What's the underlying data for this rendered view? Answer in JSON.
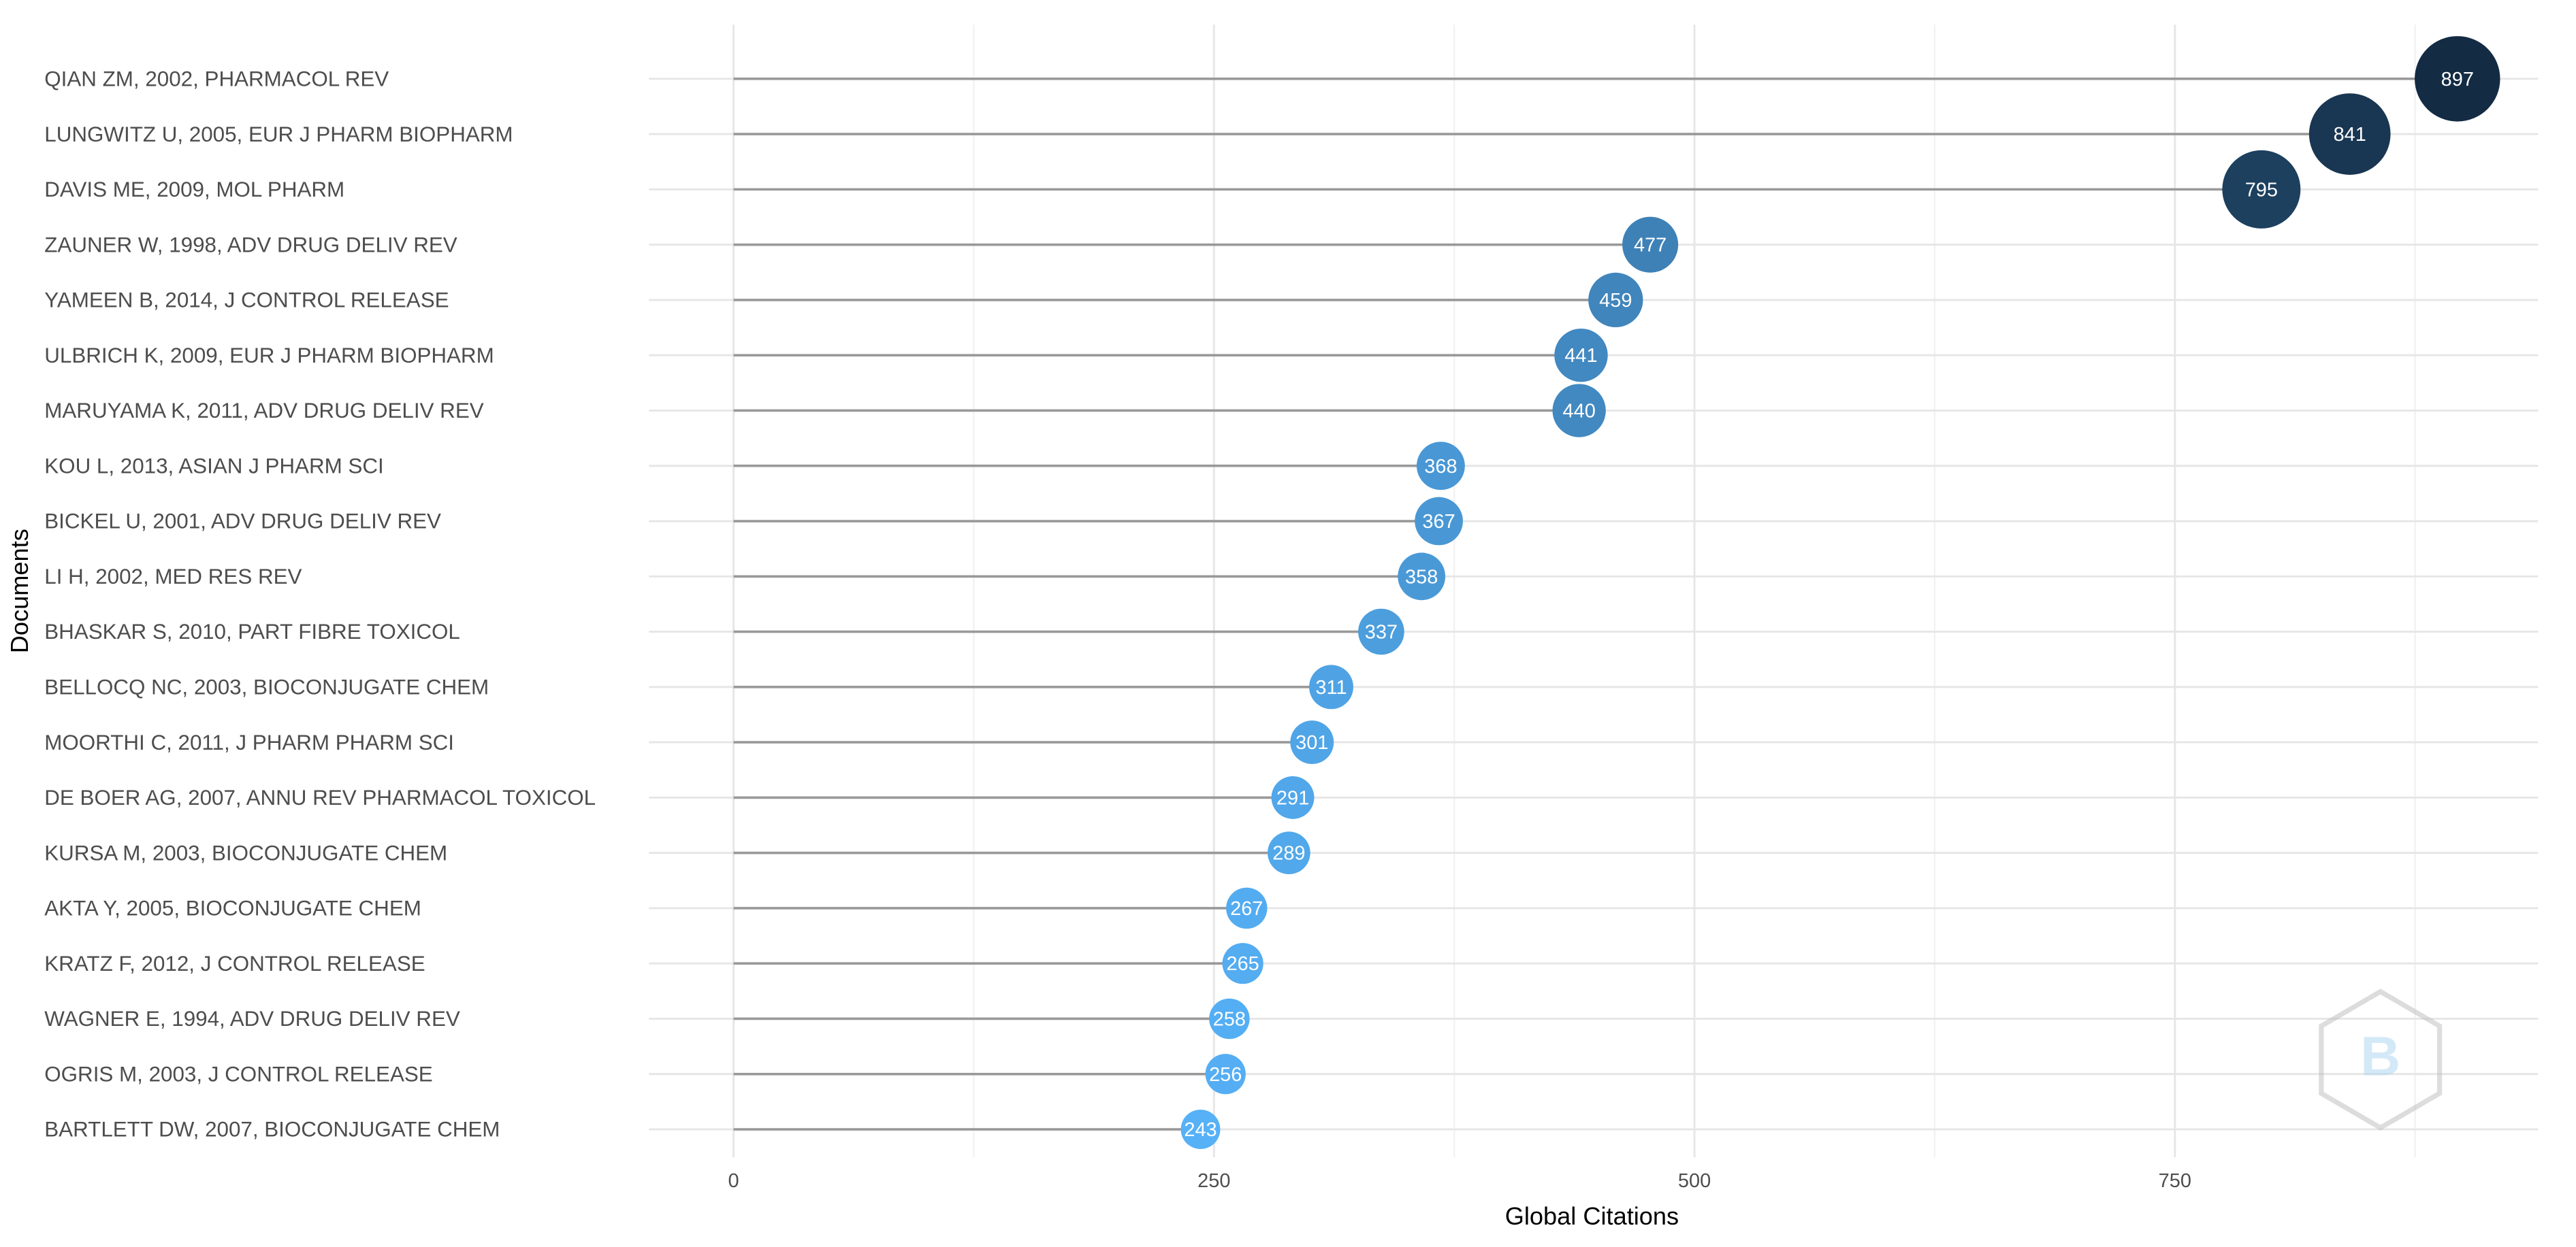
{
  "chart_data": {
    "type": "lollipop",
    "x_label": "Global Citations",
    "y_label": "Documents",
    "categories": [
      "QIAN ZM, 2002, PHARMACOL REV",
      "LUNGWITZ U, 2005, EUR J PHARM BIOPHARM",
      "DAVIS ME, 2009, MOL PHARM",
      "ZAUNER W, 1998, ADV DRUG DELIV REV",
      "YAMEEN B, 2014, J CONTROL RELEASE",
      "ULBRICH K, 2009, EUR J PHARM BIOPHARM",
      "MARUYAMA K, 2011, ADV DRUG DELIV REV",
      "KOU L, 2013, ASIAN J PHARM SCI",
      "BICKEL U, 2001, ADV DRUG DELIV REV",
      "LI H, 2002, MED RES REV",
      "BHASKAR S, 2010, PART FIBRE TOXICOL",
      "BELLOCQ NC, 2003, BIOCONJUGATE CHEM",
      "MOORTHI C, 2011, J PHARM PHARM SCI",
      "DE BOER AG, 2007, ANNU REV PHARMACOL TOXICOL",
      "KURSA M, 2003, BIOCONJUGATE CHEM",
      "AKTA Y, 2005, BIOCONJUGATE CHEM",
      "KRATZ F, 2012, J CONTROL RELEASE",
      "WAGNER E, 1994, ADV DRUG DELIV REV",
      "OGRIS M, 2003, J CONTROL RELEASE",
      "BARTLETT DW, 2007, BIOCONJUGATE CHEM"
    ],
    "values": [
      897,
      841,
      795,
      477,
      459,
      441,
      440,
      368,
      367,
      358,
      337,
      311,
      301,
      291,
      289,
      267,
      265,
      258,
      256,
      243
    ],
    "color_low": "#56B1F7",
    "color_high": "#132B43",
    "xlim": [
      -44,
      939
    ],
    "xticks": [
      0,
      250,
      500,
      750
    ],
    "xminor": [
      125,
      375,
      625,
      875
    ],
    "grid": true
  }
}
